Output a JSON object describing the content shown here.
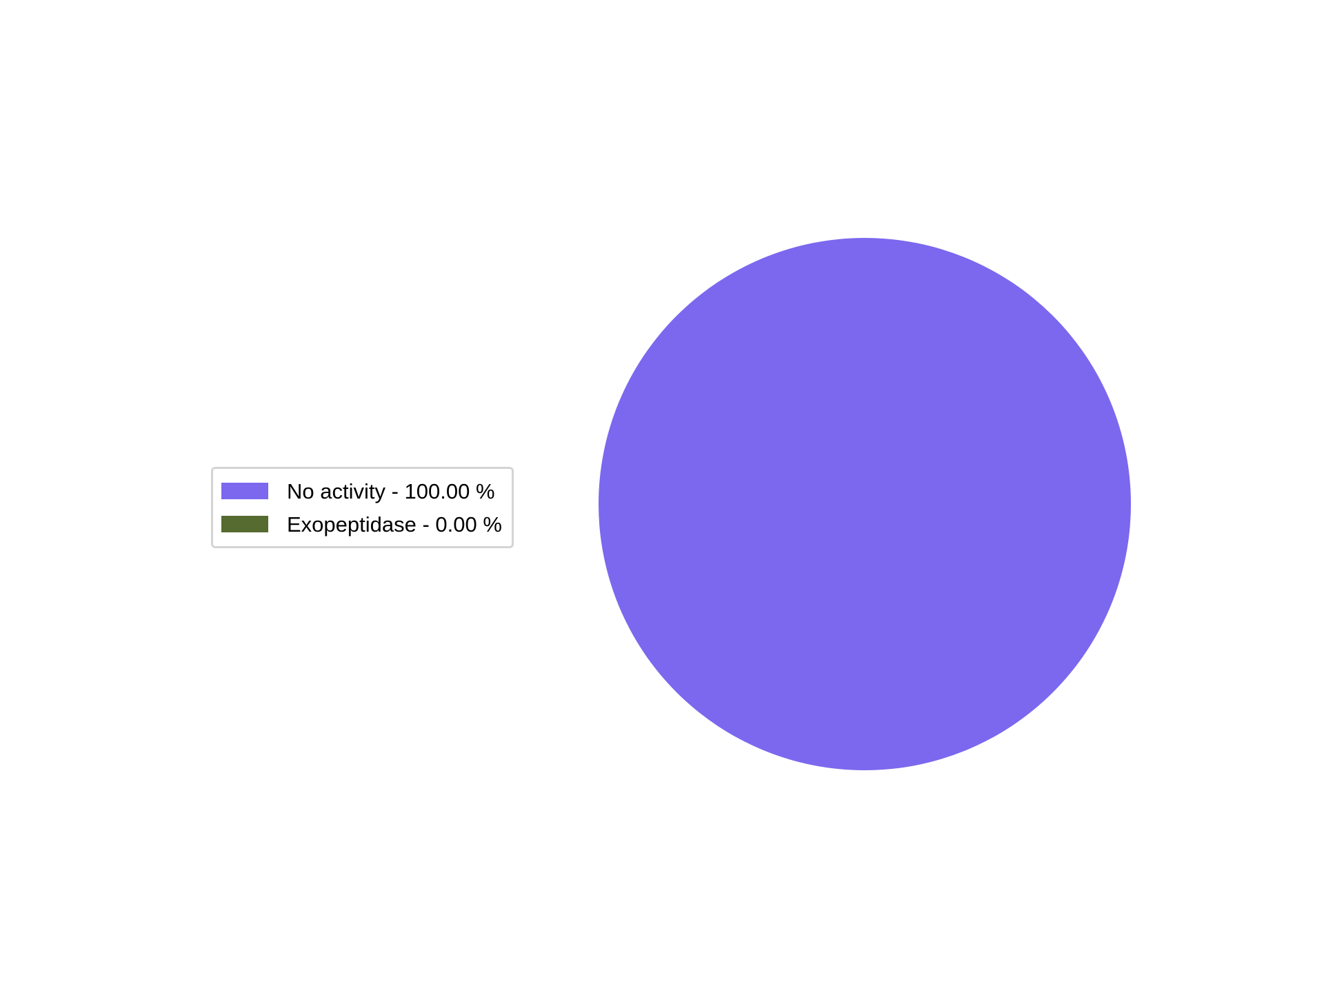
{
  "chart_data": {
    "type": "pie",
    "title": "",
    "slices": [
      {
        "label": "No activity",
        "value": 100.0,
        "color": "#7b68ee"
      },
      {
        "label": "Exopeptidase",
        "value": 0.0,
        "color": "#556b2f"
      }
    ],
    "legend": {
      "placement": "center-left",
      "entries": [
        "No activity - 100.00 %",
        "Exopeptidase - 0.00 %"
      ]
    }
  }
}
